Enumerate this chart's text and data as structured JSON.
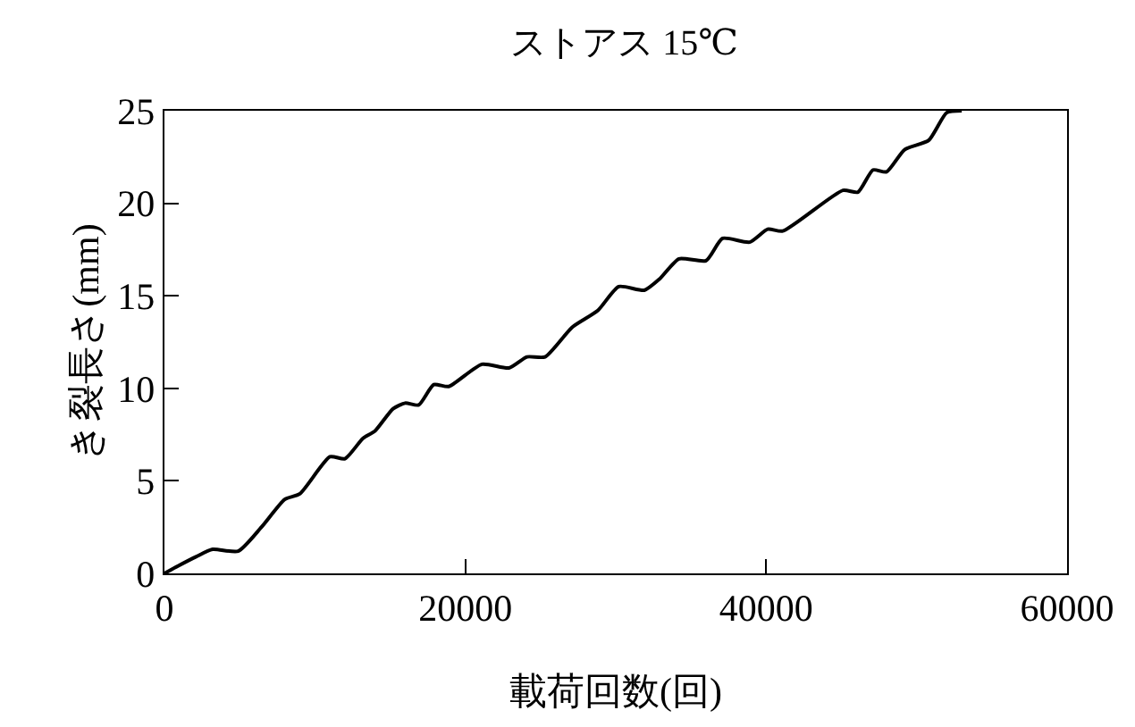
{
  "chart_data": {
    "type": "line",
    "title": "ストアス 15℃",
    "xlabel": "載荷回数(回)",
    "ylabel": "き裂長さ(mm)",
    "x": [
      0,
      900,
      2100,
      3200,
      4900,
      6450,
      8000,
      9000,
      11000,
      12000,
      13200,
      14000,
      15200,
      16000,
      16900,
      17900,
      18900,
      21100,
      22900,
      24100,
      25300,
      27100,
      28800,
      30200,
      31900,
      32900,
      34200,
      36000,
      37100,
      38900,
      40100,
      41100,
      45100,
      46100,
      47100,
      48000,
      49200,
      50800,
      52000,
      53000
    ],
    "series": [
      {
        "color": "#000000",
        "values": [
          0,
          0.4,
          0.9,
          1.3,
          1.2,
          2.5,
          4.0,
          4.3,
          6.3,
          6.2,
          7.3,
          7.7,
          8.9,
          9.2,
          9.1,
          10.2,
          10.1,
          11.3,
          11.1,
          11.7,
          11.7,
          13.3,
          14.2,
          15.5,
          15.3,
          15.9,
          17.0,
          16.9,
          18.1,
          17.9,
          18.6,
          18.5,
          20.7,
          20.6,
          21.8,
          21.7,
          22.9,
          23.4,
          24.9,
          25
        ]
      }
    ],
    "xlim": [
      0,
      60000
    ],
    "xticks": [
      0,
      20000,
      40000,
      60000
    ],
    "ylim": [
      0,
      25
    ],
    "yticks": [
      0,
      5,
      10,
      15,
      20,
      25
    ],
    "marker": "none",
    "line_style": "solid"
  }
}
